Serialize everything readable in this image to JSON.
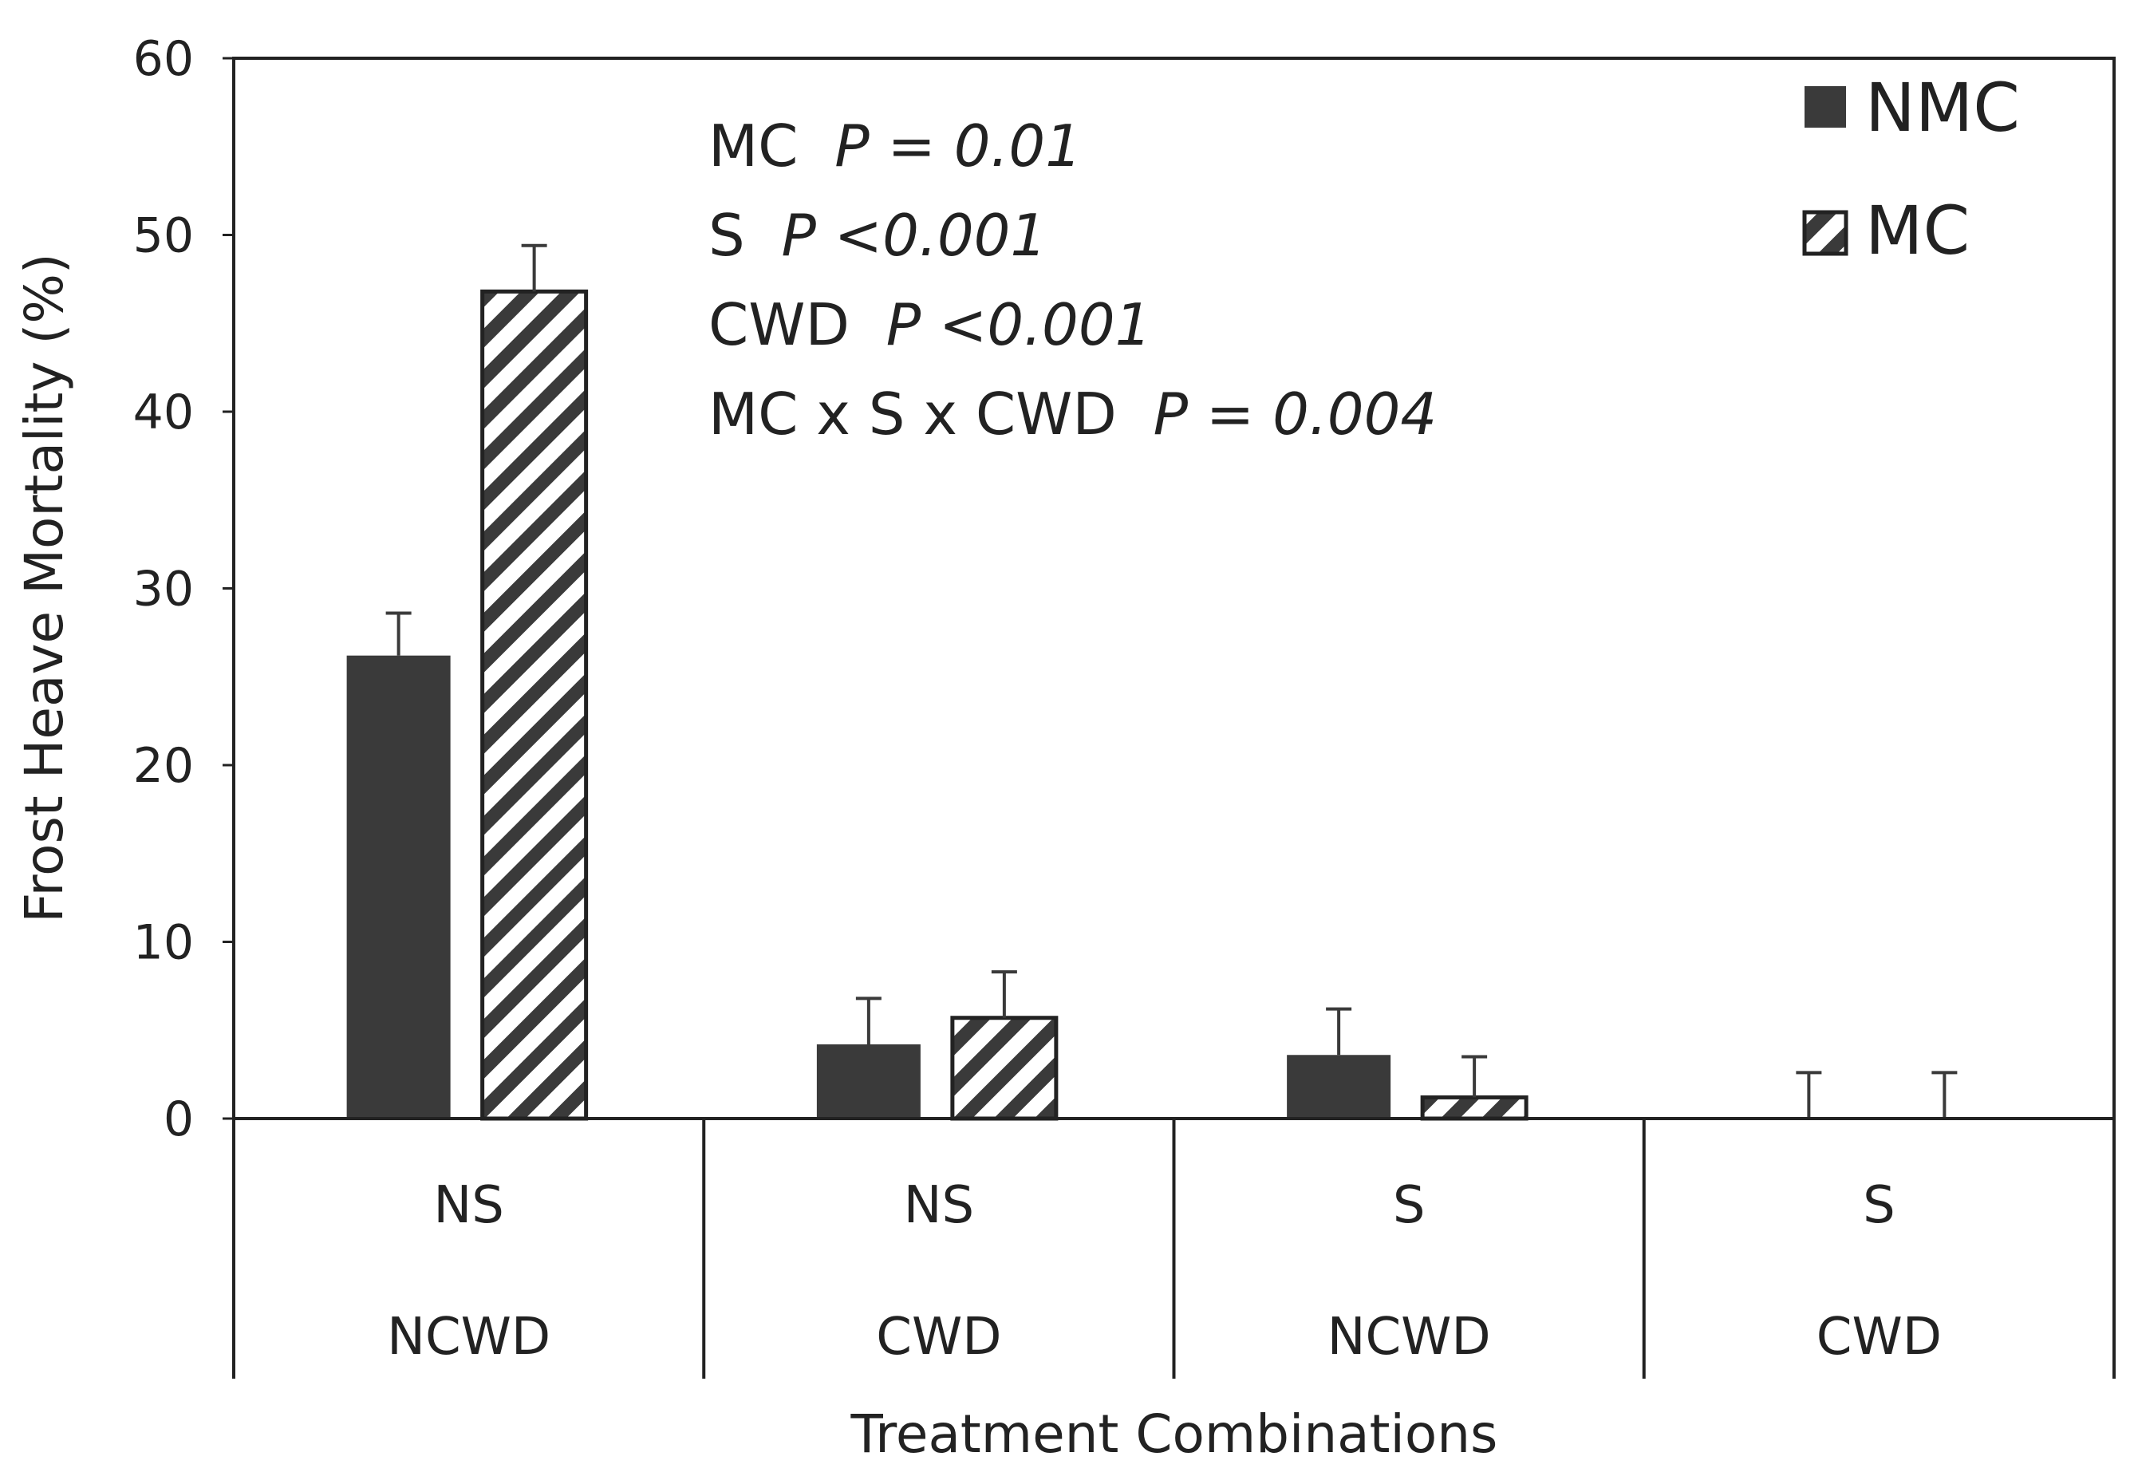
{
  "chart_data": {
    "type": "bar",
    "title": "",
    "xlabel": "Treatment Combinations",
    "ylabel": "Frost Heave Mortality (%)",
    "ylim": [
      0,
      60
    ],
    "yticks": [
      0,
      10,
      20,
      30,
      40,
      50,
      60
    ],
    "grid": false,
    "legend_position": "top-right",
    "categories": [
      {
        "level1": "NS",
        "level2": "NCWD"
      },
      {
        "level1": "NS",
        "level2": "CWD"
      },
      {
        "level1": "S",
        "level2": "NCWD"
      },
      {
        "level1": "S",
        "level2": "CWD"
      }
    ],
    "series": [
      {
        "name": "NMC",
        "pattern": "solid",
        "color": "#3a3a3a",
        "values": [
          26.2,
          4.2,
          3.6,
          0
        ],
        "errors": [
          2.4,
          2.6,
          2.6,
          2.6
        ]
      },
      {
        "name": "MC",
        "pattern": "hatched",
        "color": "#3a3a3a",
        "values": [
          46.8,
          5.7,
          1.2,
          0
        ],
        "errors": [
          2.6,
          2.6,
          2.3,
          2.6
        ]
      }
    ],
    "annotations": [
      {
        "label": "MC",
        "stat": "P = 0.01"
      },
      {
        "label": "S",
        "stat": "P <0.001"
      },
      {
        "label": "CWD",
        "stat": "P <0.001"
      },
      {
        "label": "MC x S x CWD",
        "stat": "P = 0.004"
      }
    ]
  }
}
